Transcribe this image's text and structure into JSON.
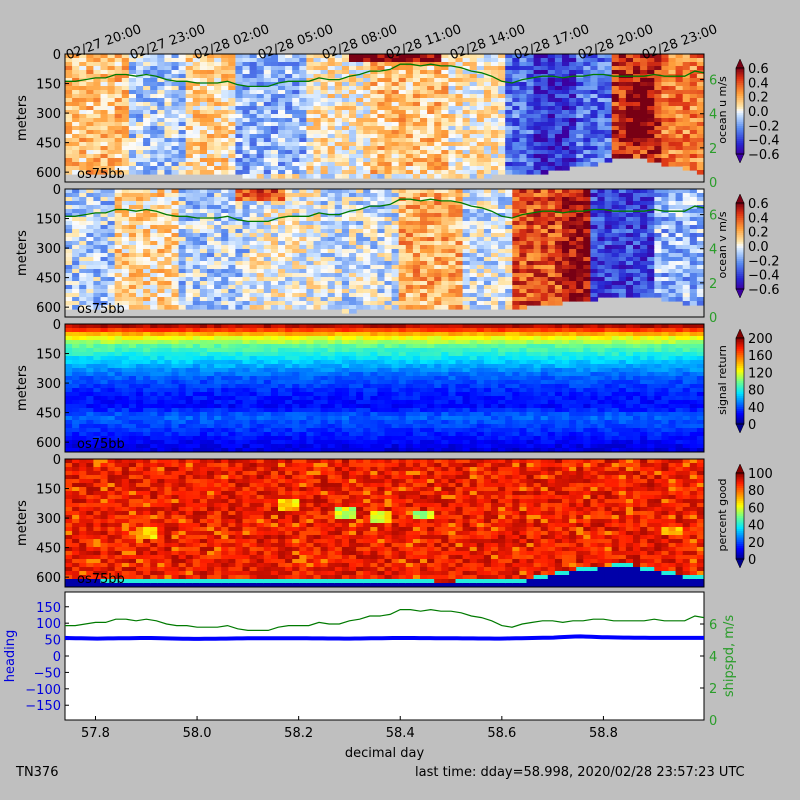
{
  "chart_data": {
    "type": "heatmap",
    "top_time_labels": [
      "02/27 20:00",
      "02/27 23:00",
      "02/28 02:00",
      "02/28 05:00",
      "02/28 08:00",
      "02/28 11:00",
      "02/28 14:00",
      "02/28 17:00",
      "02/28 20:00",
      "02/28 23:00"
    ],
    "x_range": [
      57.74,
      58.998
    ],
    "xticks": [
      57.8,
      58.0,
      58.2,
      58.4,
      58.6,
      58.8
    ],
    "xlabel": "decimal day",
    "depth_range": [
      0,
      650
    ],
    "depth_ticks": [
      0,
      150,
      300,
      450,
      600
    ],
    "ship_speed": {
      "t": [
        57.74,
        57.76,
        57.78,
        57.8,
        57.82,
        57.84,
        57.86,
        57.88,
        57.9,
        57.92,
        57.94,
        57.96,
        57.98,
        58.0,
        58.02,
        58.04,
        58.06,
        58.08,
        58.1,
        58.12,
        58.14,
        58.16,
        58.18,
        58.2,
        58.22,
        58.24,
        58.26,
        58.28,
        58.3,
        58.32,
        58.34,
        58.36,
        58.38,
        58.4,
        58.42,
        58.44,
        58.46,
        58.48,
        58.5,
        58.52,
        58.54,
        58.56,
        58.58,
        58.6,
        58.62,
        58.64,
        58.66,
        58.68,
        58.7,
        58.72,
        58.74,
        58.76,
        58.78,
        58.8,
        58.82,
        58.84,
        58.86,
        58.88,
        58.9,
        58.92,
        58.94,
        58.96,
        58.98,
        58.998
      ],
      "v": [
        5.9,
        5.9,
        6.0,
        6.1,
        6.1,
        6.3,
        6.3,
        6.2,
        6.3,
        6.2,
        6.0,
        5.9,
        5.9,
        5.8,
        5.8,
        5.8,
        5.9,
        5.7,
        5.6,
        5.6,
        5.6,
        5.8,
        5.9,
        5.9,
        5.9,
        6.1,
        6.0,
        6.0,
        6.2,
        6.3,
        6.5,
        6.5,
        6.6,
        6.9,
        6.9,
        6.8,
        6.9,
        6.8,
        6.8,
        6.7,
        6.5,
        6.4,
        6.2,
        5.9,
        5.8,
        6.0,
        6.1,
        6.2,
        6.2,
        6.1,
        6.2,
        6.2,
        6.3,
        6.3,
        6.2,
        6.2,
        6.2,
        6.2,
        6.3,
        6.2,
        6.2,
        6.2,
        6.5,
        6.4
      ]
    },
    "panels": [
      {
        "kind": "velocity",
        "cbar_label": "ocean u m/s",
        "instrument": "os75bb",
        "ylabel": "meters",
        "cbar_ticks": [
          "0.6",
          "0.4",
          "0.2",
          "0.0",
          "−0.2",
          "−0.4",
          "−0.6"
        ],
        "spd_axis": {
          "range": [
            0,
            7.5
          ],
          "ticks": [
            0,
            2,
            4,
            6
          ]
        },
        "bottom_depth": [
          {
            "t": 57.74,
            "d": 600
          },
          {
            "t": 57.9,
            "d": 610
          },
          {
            "t": 58.1,
            "d": 620
          },
          {
            "t": 58.3,
            "d": 630
          },
          {
            "t": 58.5,
            "d": 625
          },
          {
            "t": 58.65,
            "d": 615
          },
          {
            "t": 58.78,
            "d": 560
          },
          {
            "t": 58.85,
            "d": 520
          },
          {
            "t": 58.92,
            "d": 560
          },
          {
            "t": 58.998,
            "d": 610
          }
        ],
        "cells": [
          {
            "t0": 57.74,
            "t1": 57.86,
            "d0": 0,
            "d1": 600,
            "v": 0.15
          },
          {
            "t0": 57.86,
            "t1": 57.98,
            "d0": 0,
            "d1": 600,
            "v": -0.1
          },
          {
            "t0": 57.98,
            "t1": 58.08,
            "d0": 0,
            "d1": 600,
            "v": 0.1
          },
          {
            "t0": 58.08,
            "t1": 58.22,
            "d0": 0,
            "d1": 600,
            "v": -0.15
          },
          {
            "t0": 58.22,
            "t1": 58.34,
            "d0": 0,
            "d1": 600,
            "v": 0.05
          },
          {
            "t0": 58.34,
            "t1": 58.5,
            "d0": 0,
            "d1": 600,
            "v": 0.15
          },
          {
            "t0": 58.5,
            "t1": 58.6,
            "d0": 0,
            "d1": 600,
            "v": 0.05
          },
          {
            "t0": 58.6,
            "t1": 58.66,
            "d0": 0,
            "d1": 600,
            "v": -0.3
          },
          {
            "t0": 58.66,
            "t1": 58.74,
            "d0": 0,
            "d1": 600,
            "v": -0.45
          },
          {
            "t0": 58.74,
            "t1": 58.82,
            "d0": 0,
            "d1": 600,
            "v": -0.3
          },
          {
            "t0": 58.82,
            "t1": 58.92,
            "d0": 0,
            "d1": 600,
            "v": 0.45
          },
          {
            "t0": 58.92,
            "t1": 58.998,
            "d0": 0,
            "d1": 600,
            "v": 0.3
          },
          {
            "t0": 58.3,
            "t1": 58.48,
            "d0": 0,
            "d1": 40,
            "v": 0.6
          },
          {
            "t0": 58.84,
            "t1": 58.9,
            "d0": 150,
            "d1": 450,
            "v": 0.6
          }
        ]
      },
      {
        "kind": "velocity",
        "cbar_label": "ocean v m/s",
        "instrument": "os75bb",
        "ylabel": "meters",
        "cbar_ticks": [
          "0.6",
          "0.4",
          "0.2",
          "0.0",
          "−0.2",
          "−0.4",
          "−0.6"
        ],
        "spd_axis": {
          "range": [
            0,
            7.5
          ],
          "ticks": [
            0,
            2,
            4,
            6
          ]
        },
        "bottom_depth": [
          {
            "t": 57.74,
            "d": 600
          },
          {
            "t": 57.9,
            "d": 615
          },
          {
            "t": 58.1,
            "d": 610
          },
          {
            "t": 58.3,
            "d": 620
          },
          {
            "t": 58.5,
            "d": 615
          },
          {
            "t": 58.65,
            "d": 600
          },
          {
            "t": 58.72,
            "d": 580
          },
          {
            "t": 58.85,
            "d": 540
          },
          {
            "t": 58.92,
            "d": 560
          },
          {
            "t": 58.998,
            "d": 600
          }
        ],
        "cells": [
          {
            "t0": 57.74,
            "t1": 57.84,
            "d0": 0,
            "d1": 600,
            "v": -0.1
          },
          {
            "t0": 57.84,
            "t1": 57.96,
            "d0": 0,
            "d1": 600,
            "v": 0.1
          },
          {
            "t0": 57.96,
            "t1": 58.1,
            "d0": 0,
            "d1": 600,
            "v": -0.1
          },
          {
            "t0": 58.1,
            "t1": 58.24,
            "d0": 0,
            "d1": 600,
            "v": 0.0
          },
          {
            "t0": 58.24,
            "t1": 58.4,
            "d0": 0,
            "d1": 600,
            "v": -0.05
          },
          {
            "t0": 58.4,
            "t1": 58.52,
            "d0": 0,
            "d1": 600,
            "v": 0.2
          },
          {
            "t0": 58.52,
            "t1": 58.62,
            "d0": 0,
            "d1": 600,
            "v": -0.05
          },
          {
            "t0": 58.62,
            "t1": 58.72,
            "d0": 0,
            "d1": 600,
            "v": 0.4
          },
          {
            "t0": 58.72,
            "t1": 58.78,
            "d0": 0,
            "d1": 600,
            "v": 0.55
          },
          {
            "t0": 58.78,
            "t1": 58.9,
            "d0": 0,
            "d1": 600,
            "v": -0.4
          },
          {
            "t0": 58.9,
            "t1": 58.998,
            "d0": 0,
            "d1": 600,
            "v": -0.15
          },
          {
            "t0": 58.08,
            "t1": 58.18,
            "d0": 0,
            "d1": 60,
            "v": 0.4
          }
        ]
      },
      {
        "kind": "signal",
        "cbar_label": "signal return",
        "instrument": "os75bb",
        "ylabel": "meters",
        "cbar_ticks": [
          "200",
          "160",
          "120",
          "80",
          "40",
          "0"
        ],
        "profile": [
          {
            "d": 0,
            "v": 200
          },
          {
            "d": 30,
            "v": 170
          },
          {
            "d": 60,
            "v": 130
          },
          {
            "d": 110,
            "v": 95
          },
          {
            "d": 180,
            "v": 70
          },
          {
            "d": 260,
            "v": 45
          },
          {
            "d": 350,
            "v": 30
          },
          {
            "d": 420,
            "v": 25
          },
          {
            "d": 470,
            "v": 45
          },
          {
            "d": 560,
            "v": 30
          },
          {
            "d": 620,
            "v": 20
          },
          {
            "d": 650,
            "v": 15
          }
        ]
      },
      {
        "kind": "pgood",
        "cbar_label": "percent good",
        "instrument": "os75bb",
        "ylabel": "meters",
        "cbar_ticks": [
          "100",
          "80",
          "60",
          "40",
          "20",
          "0"
        ],
        "bottom_depth": [
          {
            "t": 57.74,
            "d": 600
          },
          {
            "t": 57.9,
            "d": 610
          },
          {
            "t": 58.2,
            "d": 615
          },
          {
            "t": 58.5,
            "d": 620
          },
          {
            "t": 58.65,
            "d": 605
          },
          {
            "t": 58.78,
            "d": 545
          },
          {
            "t": 58.85,
            "d": 530
          },
          {
            "t": 58.9,
            "d": 560
          },
          {
            "t": 58.998,
            "d": 600
          }
        ],
        "patches": [
          {
            "t": 58.18,
            "d": 230,
            "v": 60
          },
          {
            "t": 58.29,
            "d": 270,
            "v": 50
          },
          {
            "t": 58.36,
            "d": 290,
            "v": 55
          },
          {
            "t": 58.44,
            "d": 280,
            "v": 50
          },
          {
            "t": 57.9,
            "d": 380,
            "v": 60
          },
          {
            "t": 58.93,
            "d": 370,
            "v": 65
          }
        ]
      },
      {
        "kind": "heading",
        "ylabel": "heading",
        "ylabel_right": "shipspd, m/s",
        "heading_ticks": [
          150,
          100,
          50,
          0,
          -50,
          -100,
          -150
        ],
        "heading_range": [
          -195,
          195
        ],
        "spd_axis": {
          "range": [
            0,
            8
          ],
          "ticks": [
            0,
            2,
            4,
            6
          ]
        },
        "heading": {
          "t": [
            57.74,
            57.8,
            57.9,
            58.0,
            58.1,
            58.2,
            58.3,
            58.4,
            58.5,
            58.6,
            58.7,
            58.75,
            58.8,
            58.9,
            58.998
          ],
          "v": [
            55,
            53,
            55,
            52,
            54,
            54,
            53,
            55,
            54,
            53,
            56,
            60,
            57,
            55,
            55
          ]
        }
      }
    ]
  },
  "footer": {
    "left": "TN376",
    "right": "last time: dday=58.998,  2020/02/28 23:57:23 UTC"
  }
}
